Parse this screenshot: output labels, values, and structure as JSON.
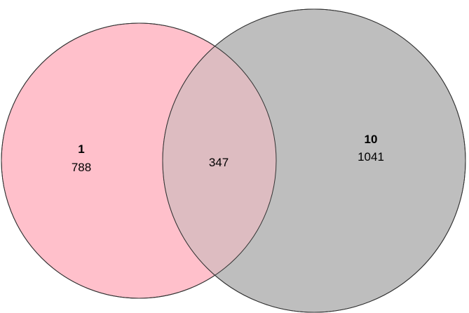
{
  "diagram": {
    "type": "venn",
    "sets": [
      {
        "name": "1",
        "only_count": "788",
        "color": "#FFC0CB"
      },
      {
        "name": "10",
        "only_count": "1041",
        "color": "#BEBEBE"
      }
    ],
    "overlap_count": "347",
    "overlap_color": "#DDBCC1",
    "outline_color": "#333333"
  }
}
